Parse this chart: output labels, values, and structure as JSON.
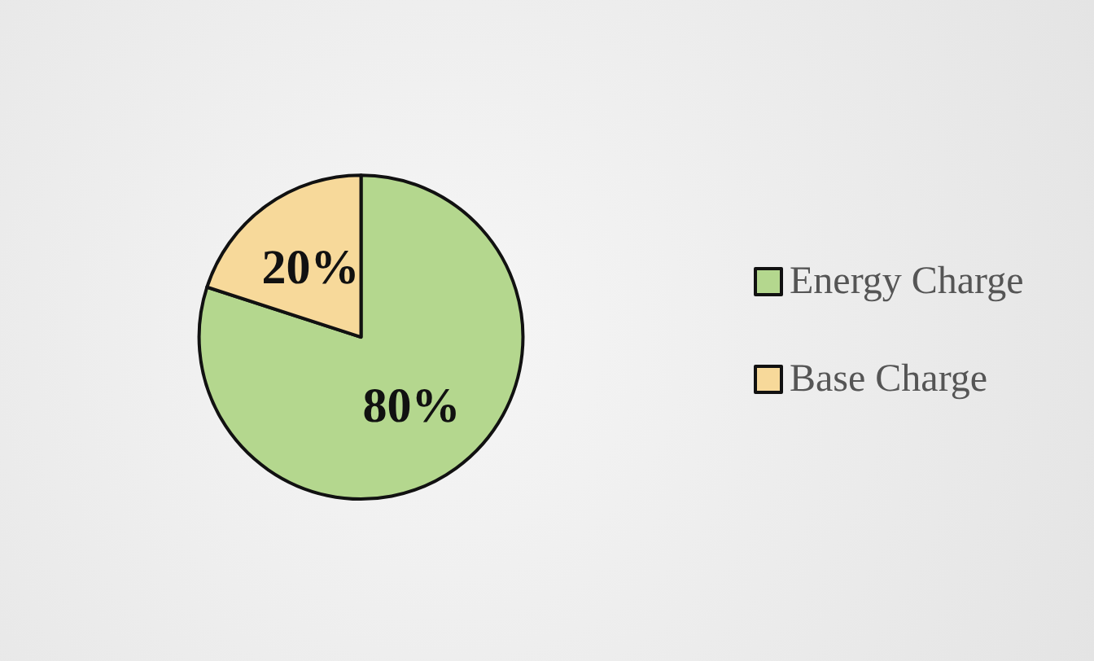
{
  "chart_data": {
    "type": "pie",
    "categories": [
      "Energy Charge",
      "Base Charge"
    ],
    "values": [
      80,
      20
    ],
    "colors": [
      "#b4d78e",
      "#f7d99a"
    ],
    "value_labels": [
      "80%",
      "20%"
    ],
    "legend": "right"
  }
}
